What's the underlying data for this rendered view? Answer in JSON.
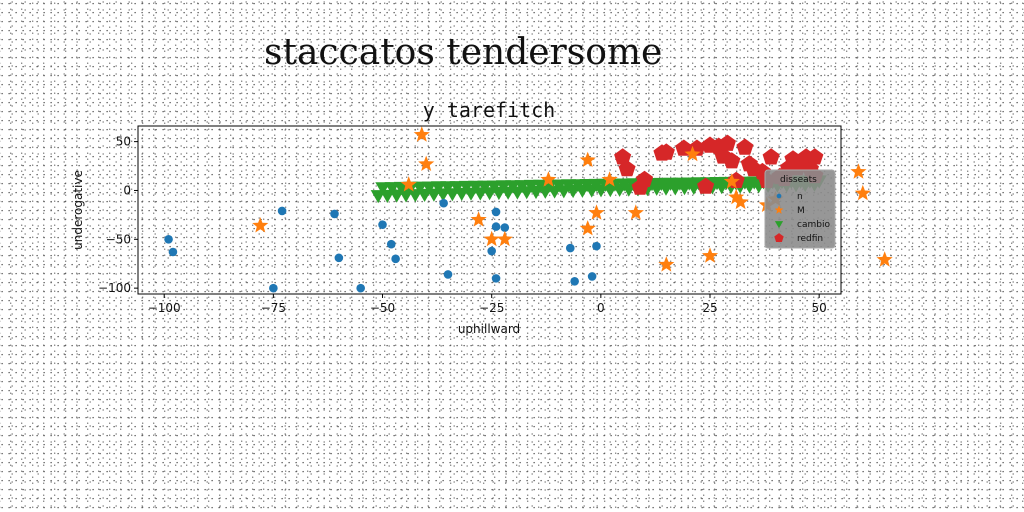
{
  "header": {
    "title": "staccatos tendersome"
  },
  "chart_data": {
    "type": "scatter",
    "title": "y tarefitch",
    "xlabel": "uphillward",
    "ylabel": "underogative",
    "xlim": [
      -106,
      55
    ],
    "ylim": [
      -106,
      66
    ],
    "xticks": [
      -100,
      -75,
      -50,
      -25,
      0,
      25,
      50
    ],
    "yticks": [
      -100,
      -50,
      0,
      50
    ],
    "grid": false,
    "legend": {
      "title": "disseats",
      "placement": "right"
    },
    "series": [
      {
        "name": "n",
        "marker": "circle",
        "color": "#1f77b4",
        "points": [
          [
            -99,
            -50
          ],
          [
            -98,
            -63
          ],
          [
            -73,
            -21
          ],
          [
            -75,
            -100
          ],
          [
            -61,
            -24
          ],
          [
            -60,
            -69
          ],
          [
            -55,
            -100
          ],
          [
            -50,
            -35
          ],
          [
            -48,
            -55
          ],
          [
            -47,
            -70
          ],
          [
            -36,
            -13
          ],
          [
            -35,
            -86
          ],
          [
            -24,
            -22
          ],
          [
            -24,
            -37
          ],
          [
            -22,
            -38
          ],
          [
            -25,
            -62
          ],
          [
            -24,
            -90
          ],
          [
            -7,
            -59
          ],
          [
            -6,
            -93
          ],
          [
            -2,
            -88
          ],
          [
            -1,
            -57
          ]
        ]
      },
      {
        "name": "M",
        "marker": "star",
        "color": "#ff7f0e",
        "points": [
          [
            -78,
            -36
          ],
          [
            -41,
            57
          ],
          [
            -40,
            27
          ],
          [
            -44,
            6
          ],
          [
            -28,
            -30
          ],
          [
            -25,
            -50
          ],
          [
            -22,
            -50
          ],
          [
            -12,
            11
          ],
          [
            -3,
            31
          ],
          [
            -3,
            -39
          ],
          [
            -1,
            -23
          ],
          [
            2,
            11
          ],
          [
            8,
            -23
          ],
          [
            15,
            -76
          ],
          [
            21,
            37
          ],
          [
            25,
            -67
          ],
          [
            30,
            9
          ],
          [
            32,
            -12
          ],
          [
            31,
            -7
          ],
          [
            38,
            -15
          ],
          [
            40,
            -9
          ],
          [
            59,
            19
          ],
          [
            60,
            -3
          ],
          [
            65,
            -71
          ]
        ]
      },
      {
        "name": "cambio",
        "marker": "triangle-down",
        "color": "#2ca02c",
        "x_start": -51,
        "x_end": 50,
        "count": 96,
        "y_start": 3,
        "y_end": 10,
        "y_dip": -8
      },
      {
        "name": "redfin",
        "marker": "pentagon",
        "color": "#d62728",
        "points": [
          [
            5,
            34
          ],
          [
            6,
            22
          ],
          [
            9,
            3
          ],
          [
            10,
            11
          ],
          [
            14,
            38
          ],
          [
            15,
            39
          ],
          [
            19,
            43
          ],
          [
            22,
            43
          ],
          [
            24,
            4
          ],
          [
            25,
            46
          ],
          [
            27,
            45
          ],
          [
            28,
            35
          ],
          [
            29,
            48
          ],
          [
            30,
            30
          ],
          [
            31,
            10
          ],
          [
            33,
            44
          ],
          [
            34,
            27
          ],
          [
            35,
            22
          ],
          [
            37,
            19
          ],
          [
            38,
            10
          ],
          [
            39,
            34
          ],
          [
            41,
            14
          ],
          [
            42,
            12
          ],
          [
            43,
            23
          ],
          [
            44,
            32
          ],
          [
            45,
            23
          ],
          [
            47,
            34
          ],
          [
            48,
            22
          ],
          [
            49,
            34
          ],
          [
            49,
            15
          ]
        ]
      }
    ]
  }
}
